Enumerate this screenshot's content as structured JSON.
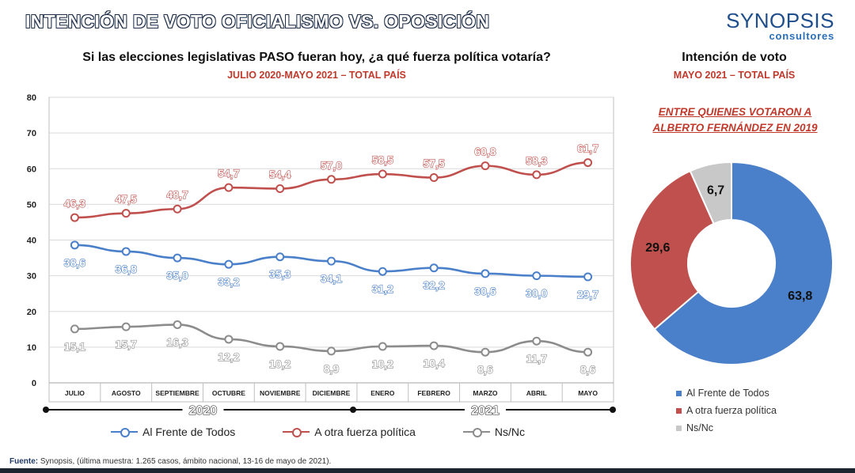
{
  "header": {
    "title": "INTENCIÓN DE VOTO OFICIALISMO VS. OPOSICIÓN",
    "logo_word": "SYNOPSIS",
    "logo_sub": "consultores"
  },
  "left_panel": {
    "title": "Si las elecciones legislativas PASO fueran hoy, ¿a qué fuerza política votaría?",
    "subtitle": "JULIO 2020-MAYO 2021 – TOTAL PAÍS"
  },
  "right_panel": {
    "title": "Intención de voto",
    "subtitle": "MAYO 2021 – TOTAL PAÍS",
    "note_line1": "ENTRE QUIENES VOTARON A",
    "note_line2": "ALBERTO FERNÁNDEZ EN 2019"
  },
  "colors": {
    "blue": "#4a7fc9",
    "red": "#c0504d",
    "gray": "#8c8c8c",
    "light_gray": "#c8c8c8",
    "navy": "#1f4e8c"
  },
  "chart_data": [
    {
      "type": "line",
      "categories": [
        "JULIO",
        "AGOSTO",
        "SEPTIEMBRE",
        "OCTUBRE",
        "NOVIEMBRE",
        "DICIEMBRE",
        "ENERO",
        "FEBRERO",
        "MARZO",
        "ABRIL",
        "MAYO"
      ],
      "category_display": [
        "JULIO",
        "AGOSTO",
        "SEPTIEMBRE",
        "OCTUBRE",
        "NOVIEMBRE",
        "DICIEMBRE",
        "ENERO",
        "FEBRERO",
        "MARZO",
        "ABRIL",
        "MAYO"
      ],
      "series": [
        {
          "name": "Al Frente de Todos",
          "color": "#4a7fc9",
          "values": [
            38.6,
            36.8,
            35.0,
            33.2,
            35.3,
            34.1,
            31.2,
            32.2,
            30.6,
            30.0,
            29.7
          ],
          "labels": [
            "38,6",
            "36,8",
            "35,0",
            "33,2",
            "35,3",
            "34,1",
            "31,2",
            "32,2",
            "30,6",
            "30,0",
            "29,7"
          ]
        },
        {
          "name": "A otra fuerza política",
          "color": "#c0504d",
          "values": [
            46.3,
            47.5,
            48.7,
            54.7,
            54.4,
            57.0,
            58.5,
            57.5,
            60.8,
            58.3,
            61.7
          ],
          "labels": [
            "46,3",
            "47,5",
            "48,7",
            "54,7",
            "54,4",
            "57,0",
            "58,5",
            "57,5",
            "60,8",
            "58,3",
            "61,7"
          ]
        },
        {
          "name": "Ns/Nc",
          "color": "#8c8c8c",
          "values": [
            15.1,
            15.7,
            16.3,
            12.2,
            10.2,
            8.9,
            10.2,
            10.4,
            8.6,
            11.7,
            8.6
          ],
          "labels": [
            "15,1",
            "15,7",
            "16,3",
            "12,2",
            "10,2",
            "8,9",
            "10,2",
            "10,4",
            "8,6",
            "11,7",
            "8,6"
          ]
        }
      ],
      "year_groups": [
        {
          "label": "2020",
          "categories": [
            "JULIO",
            "AGOSTO",
            "SEPTIEMBRE",
            "OCTUBRE",
            "NOVIEMBRE",
            "DICIEMBRE"
          ]
        },
        {
          "label": "2021",
          "categories": [
            "ENERO",
            "FEBRERO",
            "MARZO",
            "ABRIL",
            "MAYO"
          ]
        }
      ],
      "y_ticks": [
        "0",
        "10",
        "20",
        "30",
        "40",
        "50",
        "60",
        "70",
        "80"
      ],
      "ylim": [
        0,
        80
      ],
      "grid": true,
      "legend_position": "bottom"
    },
    {
      "type": "pie",
      "variant": "donut",
      "slices": [
        {
          "label": "Al Frente de Todos",
          "value": 63.8,
          "display": "63,8",
          "color": "#4a7fc9"
        },
        {
          "label": "A otra fuerza política",
          "value": 29.6,
          "display": "29,6",
          "color": "#c0504d"
        },
        {
          "label": "Ns/Nc",
          "value": 6.7,
          "display": "6,7",
          "color": "#c8c8c8"
        }
      ],
      "legend_position": "bottom"
    }
  ],
  "legends": {
    "line": [
      "Al Frente de Todos",
      "A otra fuerza política",
      "Ns/Nc"
    ],
    "donut": [
      "Al Frente de Todos",
      "A otra fuerza política",
      "Ns/Nc"
    ]
  },
  "footer": {
    "source_label": "Fuente:",
    "source_text": " Synopsis, (última muestra: 1.265 casos, ámbito nacional, 13-16 de mayo de 2021)."
  }
}
